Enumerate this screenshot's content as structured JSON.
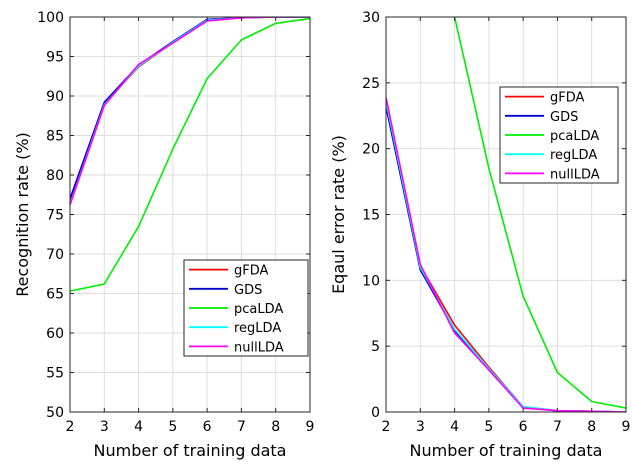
{
  "chart_data": [
    {
      "type": "line",
      "xlabel": "Number of training data",
      "ylabel": "Recognition rate (%)",
      "xlim": [
        2,
        9
      ],
      "ylim": [
        50,
        100
      ],
      "xticks": [
        2,
        3,
        4,
        5,
        6,
        7,
        8,
        9
      ],
      "yticks": [
        50,
        55,
        60,
        65,
        70,
        75,
        80,
        85,
        90,
        95,
        100
      ],
      "grid": true,
      "legend_position": "lower-right",
      "series": [
        {
          "name": "gFDA",
          "color": "#ff0000",
          "x": [
            2,
            3,
            4,
            5,
            6,
            7,
            8,
            9
          ],
          "y": [
            76.5,
            89.0,
            93.7,
            96.8,
            99.7,
            99.9,
            100.0,
            100.0
          ]
        },
        {
          "name": "GDS",
          "color": "#0000cc",
          "x": [
            2,
            3,
            4,
            5,
            6,
            7,
            8,
            9
          ],
          "y": [
            77.0,
            89.2,
            93.9,
            96.9,
            99.7,
            99.9,
            100.0,
            100.0
          ]
        },
        {
          "name": "pcaLDA",
          "color": "#00ee00",
          "x": [
            2,
            3,
            4,
            5,
            6,
            7,
            8,
            9
          ],
          "y": [
            65.3,
            66.2,
            73.5,
            83.3,
            92.2,
            97.1,
            99.2,
            99.8
          ]
        },
        {
          "name": "regLDA",
          "color": "#00ffff",
          "x": [
            2,
            3,
            4,
            5,
            6,
            7,
            8,
            9
          ],
          "y": [
            76.3,
            88.9,
            93.8,
            96.8,
            99.6,
            99.9,
            100.0,
            100.0
          ]
        },
        {
          "name": "nullLDA",
          "color": "#ff00ff",
          "x": [
            2,
            3,
            4,
            5,
            6,
            7,
            8,
            9
          ],
          "y": [
            76.2,
            88.8,
            94.0,
            96.7,
            99.5,
            99.9,
            100.0,
            100.0
          ]
        }
      ]
    },
    {
      "type": "line",
      "xlabel": "Number of training data",
      "ylabel": "Eqaul error rate (%)",
      "xlim": [
        2,
        9
      ],
      "ylim": [
        0,
        30
      ],
      "xticks": [
        2,
        3,
        4,
        5,
        6,
        7,
        8,
        9
      ],
      "yticks": [
        0,
        5,
        10,
        15,
        20,
        25,
        30
      ],
      "grid": true,
      "legend_position": "top-right",
      "series": [
        {
          "name": "gFDA",
          "color": "#ff0000",
          "x": [
            2,
            3,
            4,
            5,
            6,
            7,
            8,
            9
          ],
          "y": [
            23.8,
            11.1,
            6.6,
            3.4,
            0.4,
            0.1,
            0.05,
            0.0
          ]
        },
        {
          "name": "GDS",
          "color": "#0000cc",
          "x": [
            2,
            3,
            4,
            5,
            6,
            7,
            8,
            9
          ],
          "y": [
            23.2,
            10.8,
            6.2,
            3.2,
            0.35,
            0.1,
            0.05,
            0.0
          ]
        },
        {
          "name": "pcaLDA",
          "color": "#00ee00",
          "x": [
            2,
            3,
            4,
            5,
            6,
            7,
            8,
            9
          ],
          "y": [
            null,
            null,
            30.0,
            18.5,
            8.8,
            3.0,
            0.8,
            0.3
          ]
        },
        {
          "name": "regLDA",
          "color": "#00ffff",
          "x": [
            2,
            3,
            4,
            5,
            6,
            7,
            8,
            9
          ],
          "y": [
            23.6,
            11.0,
            6.3,
            3.3,
            0.4,
            0.1,
            0.05,
            0.0
          ]
        },
        {
          "name": "nullLDA",
          "color": "#ff00ff",
          "x": [
            2,
            3,
            4,
            5,
            6,
            7,
            8,
            9
          ],
          "y": [
            23.9,
            11.2,
            6.0,
            3.2,
            0.3,
            0.1,
            0.05,
            0.0
          ]
        }
      ]
    }
  ]
}
